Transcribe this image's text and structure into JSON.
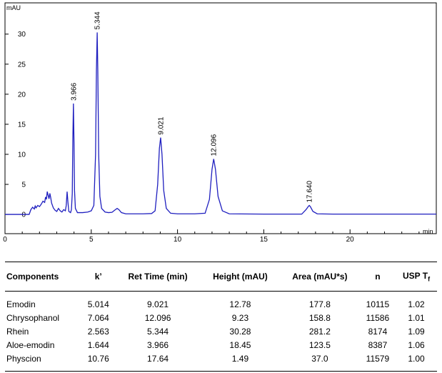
{
  "chart_data": {
    "type": "line",
    "ylabel": "mAU",
    "xlabel": "min",
    "xlim": [
      0,
      25.0
    ],
    "ylim": [
      -3.2,
      35.2
    ],
    "x_ticks": [
      0,
      5,
      10,
      15,
      20
    ],
    "y_ticks": [
      0,
      5,
      10,
      15,
      20,
      25,
      30
    ],
    "line_color": "#1f1fbf",
    "peaks": [
      {
        "label": "3.966",
        "x": 3.966,
        "y": 18.45
      },
      {
        "label": "5.344",
        "x": 5.344,
        "y": 30.28
      },
      {
        "label": "9.021",
        "x": 9.021,
        "y": 12.78
      },
      {
        "label": "12.096",
        "x": 12.096,
        "y": 9.23
      },
      {
        "label": "17.640",
        "x": 17.64,
        "y": 1.49
      }
    ],
    "series": [
      {
        "x": [
          0,
          1.4,
          1.5,
          1.6,
          1.7,
          1.75,
          1.8,
          1.9,
          2.0,
          2.1,
          2.2,
          2.3,
          2.35,
          2.4,
          2.45,
          2.5,
          2.55,
          2.6,
          2.65,
          2.7,
          2.8,
          2.9,
          3.0,
          3.1,
          3.2,
          3.3,
          3.4,
          3.5,
          3.55,
          3.6,
          3.65,
          3.7,
          3.8,
          3.85,
          3.9,
          3.93,
          3.966,
          4.0,
          4.03,
          4.08,
          4.2,
          4.5,
          4.8,
          5.0,
          5.15,
          5.25,
          5.3,
          5.344,
          5.38,
          5.43,
          5.5,
          5.6,
          5.8,
          6.0,
          6.2,
          6.4,
          6.5,
          6.6,
          6.75,
          7.0,
          7.5,
          8.0,
          8.5,
          8.7,
          8.85,
          8.95,
          9.021,
          9.1,
          9.2,
          9.35,
          9.6,
          10.0,
          11.0,
          11.6,
          11.85,
          12.0,
          12.096,
          12.2,
          12.35,
          12.6,
          13.0,
          15.0,
          17.2,
          17.45,
          17.6,
          17.64,
          17.7,
          17.85,
          18.1,
          19.0,
          25.0
        ],
        "y": [
          0,
          0,
          0.8,
          1.2,
          0.9,
          1.4,
          1.1,
          1.5,
          1.3,
          1.7,
          2.2,
          2.0,
          2.9,
          2.5,
          3.8,
          3.2,
          2.6,
          3.5,
          2.8,
          1.9,
          1.1,
          0.7,
          0.5,
          1.0,
          0.6,
          0.4,
          0.8,
          0.6,
          1.5,
          3.8,
          2.0,
          0.5,
          0.3,
          0.8,
          3.5,
          12.0,
          18.45,
          12.0,
          4.0,
          1.0,
          0.3,
          0.3,
          0.4,
          0.6,
          1.5,
          10.0,
          24.0,
          30.28,
          24.0,
          10.0,
          3.0,
          1.0,
          0.4,
          0.3,
          0.35,
          0.8,
          1.0,
          0.8,
          0.3,
          0.1,
          0.1,
          0.1,
          0.15,
          0.6,
          5.0,
          11.0,
          12.78,
          10.0,
          4.0,
          1.0,
          0.2,
          0.1,
          0.1,
          0.2,
          2.5,
          7.5,
          9.23,
          7.5,
          3.0,
          0.6,
          0.1,
          0.05,
          0.05,
          0.8,
          1.4,
          1.49,
          1.3,
          0.5,
          0.1,
          0.05,
          0.05
        ]
      }
    ]
  },
  "table": {
    "headers": [
      "Components",
      "k’",
      "Ret Time (min)",
      "Height (mAU)",
      "Area (mAU*s)",
      "n",
      "USP T"
    ],
    "usp_subscript": "f",
    "rows": [
      [
        "Emodin",
        "5.014",
        "9.021",
        "12.78",
        "177.8",
        "10115",
        "1.02"
      ],
      [
        "Chrysophanol",
        "7.064",
        "12.096",
        "9.23",
        "158.8",
        "11586",
        "1.01"
      ],
      [
        "Rhein",
        "2.563",
        "5.344",
        "30.28",
        "281.2",
        "8174",
        "1.09"
      ],
      [
        "Aloe-emodin",
        "1.644",
        "3.966",
        "18.45",
        "123.5",
        "8387",
        "1.06"
      ],
      [
        "Physcion",
        "10.76",
        "17.64",
        "1.49",
        "37.0",
        "11579",
        "1.00"
      ]
    ]
  }
}
